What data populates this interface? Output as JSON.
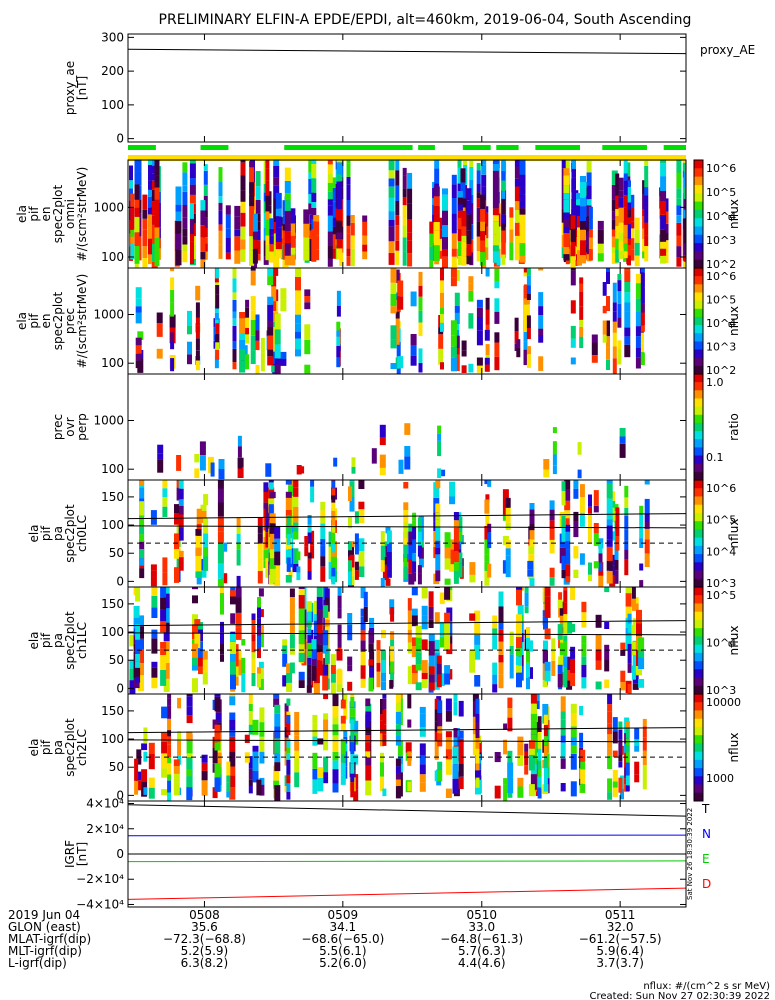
{
  "title": "PRELIMINARY ELFIN-A EPDE/EPDI, alt=460km, 2019-06-04, South Ascending",
  "side_stamp": "Sat Nov 26 18:30:39 2022",
  "footer": {
    "line1": "nflux: #/(cm^2 s sr MeV)",
    "line2": "Created: Sun Nov 27 02:30:39 2022"
  },
  "colors": {
    "frame": "#000000",
    "igrf_T": "#000000",
    "igrf_N": "#0000ff",
    "igrf_E": "#00cc00",
    "igrf_D": "#ff0000",
    "bar_green": "#00dd00",
    "bar_yellow": "#ffdd00"
  },
  "palette": [
    "#3a003a",
    "#5a0078",
    "#2a00c8",
    "#0050ff",
    "#00a0ff",
    "#00e0e0",
    "#00d070",
    "#30e000",
    "#c8f000",
    "#ffe000",
    "#ff9000",
    "#ff3000",
    "#e00000"
  ],
  "colorbars": [
    {
      "label": "nflux",
      "ticks": [
        "10^6",
        "10^5",
        "10^4",
        "10^3",
        "10^2"
      ]
    },
    {
      "label": "nflux",
      "ticks": [
        "10^6",
        "10^5",
        "10^4",
        "10^3",
        "10^2"
      ]
    },
    {
      "label": "ratio",
      "ticks": [
        "1.0",
        "0.1"
      ]
    },
    {
      "label": "nflux",
      "ticks": [
        "10^6",
        "10^5",
        "10^4",
        "10^3"
      ]
    },
    {
      "label": "nflux",
      "ticks": [
        "10^5",
        "10^4",
        "10^3"
      ]
    },
    {
      "label": "nflux",
      "ticks": [
        "10000",
        "1000"
      ]
    }
  ],
  "chart_data": [
    {
      "id": "proxy_ae",
      "type": "line",
      "ylabel": [
        "proxy_ae",
        "[nT]"
      ],
      "legend": "proxy_AE",
      "ylim": [
        -10,
        310
      ],
      "yticks": [
        "300",
        "200",
        "100",
        "0"
      ],
      "ytick_values": [
        300,
        200,
        100,
        0
      ],
      "series": [
        {
          "name": "proxy_AE",
          "x": [
            0,
            1
          ],
          "values": [
            265,
            252
          ]
        }
      ],
      "status_bar_green_segments": [
        [
          0.0,
          0.05
        ],
        [
          0.13,
          0.18
        ],
        [
          0.28,
          0.51
        ],
        [
          0.52,
          0.55
        ],
        [
          0.6,
          0.65
        ],
        [
          0.66,
          0.7
        ],
        [
          0.73,
          0.81
        ],
        [
          0.85,
          0.93
        ],
        [
          0.96,
          1.0
        ]
      ],
      "status_bar_yellow_segments": [
        [
          0.0,
          1.0
        ]
      ]
    },
    {
      "id": "omni",
      "type": "heatmap",
      "ylabel": [
        "ela",
        "pif",
        "en",
        "spec2plot",
        "omni",
        "#/(scm²strMeV)"
      ],
      "yscale": "log",
      "ylim": [
        60,
        9000
      ],
      "yticks": [
        "1000",
        "100"
      ],
      "ytick_values": [
        1000,
        100
      ],
      "colorbar": 0
    },
    {
      "id": "prec",
      "type": "heatmap",
      "ylabel": [
        "ela",
        "pif",
        "en",
        "spec2plot",
        "prec",
        "#/(scm²strMeV)"
      ],
      "yscale": "log",
      "ylim": [
        60,
        9000
      ],
      "yticks": [
        "1000",
        "100"
      ],
      "ytick_values": [
        1000,
        100
      ],
      "colorbar": 1
    },
    {
      "id": "ratio",
      "type": "heatmap",
      "ylabel": [
        "prec",
        "ovr",
        "perp"
      ],
      "yscale": "log",
      "ylim": [
        60,
        9000
      ],
      "yticks": [
        "1000",
        "100"
      ],
      "ytick_values": [
        1000,
        100
      ],
      "colorbar": 2
    },
    {
      "id": "ch0",
      "type": "heatmap",
      "ylabel": [
        "ela",
        "pif",
        "pa",
        "spec2plot",
        "ch0LC"
      ],
      "ylim": [
        -10,
        180
      ],
      "yticks": [
        "150",
        "100",
        "50",
        "0"
      ],
      "ytick_values": [
        150,
        100,
        50,
        0
      ],
      "overlay_lines": {
        "solid": [
          115,
          95
        ],
        "dashed": [
          68
        ]
      },
      "colorbar": 3
    },
    {
      "id": "ch1",
      "type": "heatmap",
      "ylabel": [
        "ela",
        "pif",
        "pa",
        "spec2plot",
        "ch1LC"
      ],
      "ylim": [
        -10,
        180
      ],
      "yticks": [
        "150",
        "100",
        "50",
        "0"
      ],
      "ytick_values": [
        150,
        100,
        50,
        0
      ],
      "overlay_lines": {
        "solid": [
          115,
          95
        ],
        "dashed": [
          68
        ]
      },
      "colorbar": 4
    },
    {
      "id": "ch2",
      "type": "heatmap",
      "ylabel": [
        "ela",
        "pif",
        "pa",
        "spec2plot",
        "ch2LC"
      ],
      "ylim": [
        -10,
        180
      ],
      "yticks": [
        "150",
        "100",
        "50",
        "0"
      ],
      "ytick_values": [
        150,
        100,
        50,
        0
      ],
      "overlay_lines": {
        "solid": [
          115,
          95
        ],
        "dashed": [
          68
        ]
      },
      "colorbar": 5
    },
    {
      "id": "igrf",
      "type": "line",
      "ylabel": [
        "IGRF",
        "[nT]"
      ],
      "ylim": [
        -42000,
        42000
      ],
      "yticks": [
        "4×10⁴",
        "2×10⁴",
        "0",
        "−2×10⁴",
        "−4×10⁴"
      ],
      "ytick_values": [
        40000,
        20000,
        0,
        -20000,
        -40000
      ],
      "series": [
        {
          "name": "T",
          "x": [
            0,
            1
          ],
          "values": [
            39000,
            30000
          ]
        },
        {
          "name": "N",
          "x": [
            0,
            1
          ],
          "values": [
            14500,
            15000
          ]
        },
        {
          "name": "E",
          "x": [
            0,
            1
          ],
          "values": [
            -6000,
            -5500
          ]
        },
        {
          "name": "D",
          "x": [
            0,
            1
          ],
          "values": [
            -36000,
            -27000
          ]
        }
      ],
      "legend": [
        "T",
        "N",
        "E",
        "D"
      ]
    }
  ],
  "x_axis": {
    "tick_values": [
      0.137,
      0.385,
      0.634,
      0.882
    ],
    "row_labels": [
      "2019 Jun 04",
      "GLON (east)",
      "MLAT-igrf(dip)",
      "MLT-igrf(dip)",
      "L-igrf(dip)"
    ],
    "columns": [
      [
        "0508",
        "35.6",
        "−72.3(−68.8)",
        "5.2(5.9)",
        "6.3(8.2)"
      ],
      [
        "0509",
        "34.1",
        "−68.6(−65.0)",
        "5.5(6.1)",
        "5.2(6.0)"
      ],
      [
        "0510",
        "33.0",
        "−64.8(−61.3)",
        "5.7(6.3)",
        "4.4(4.6)"
      ],
      [
        "0511",
        "32.0",
        "−61.2(−57.5)",
        "5.9(6.4)",
        "3.7(3.7)"
      ]
    ]
  }
}
